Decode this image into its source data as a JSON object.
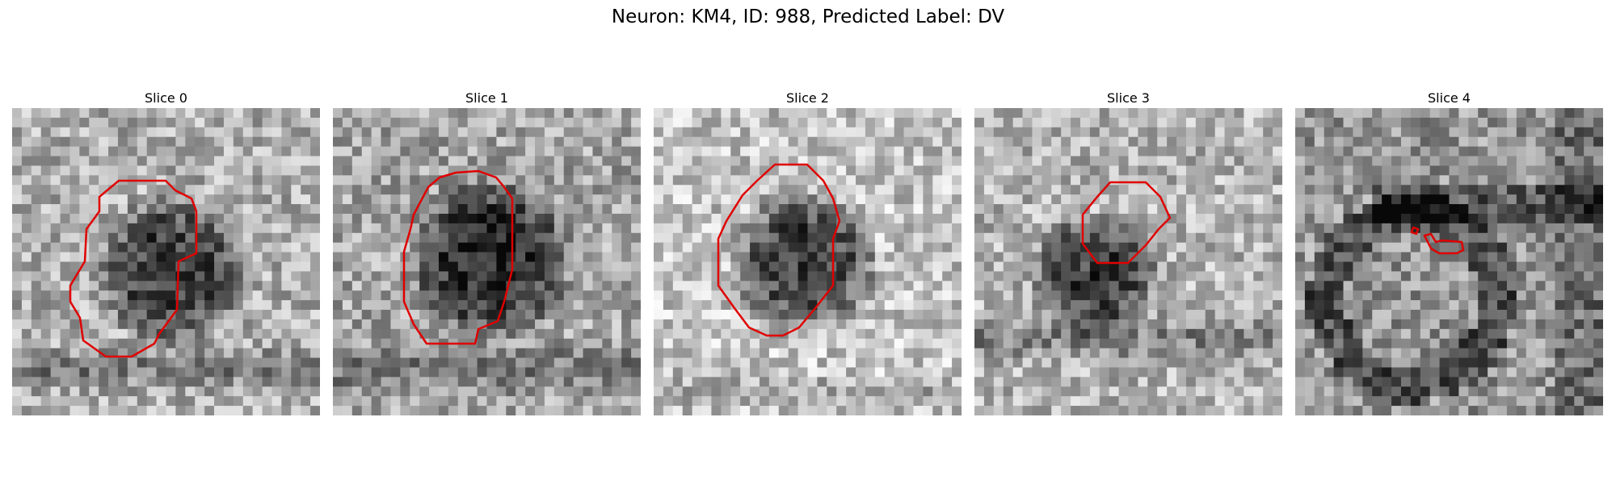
{
  "figure": {
    "title": "Neuron: KM4, ID: 988, Predicted Label: DV"
  },
  "panels": [
    {
      "title": "Slice 0"
    },
    {
      "title": "Slice 1"
    },
    {
      "title": "Slice 2"
    },
    {
      "title": "Slice 3"
    },
    {
      "title": "Slice 4"
    }
  ],
  "colors": {
    "contour": "#e00000",
    "background": "#ffffff"
  }
}
